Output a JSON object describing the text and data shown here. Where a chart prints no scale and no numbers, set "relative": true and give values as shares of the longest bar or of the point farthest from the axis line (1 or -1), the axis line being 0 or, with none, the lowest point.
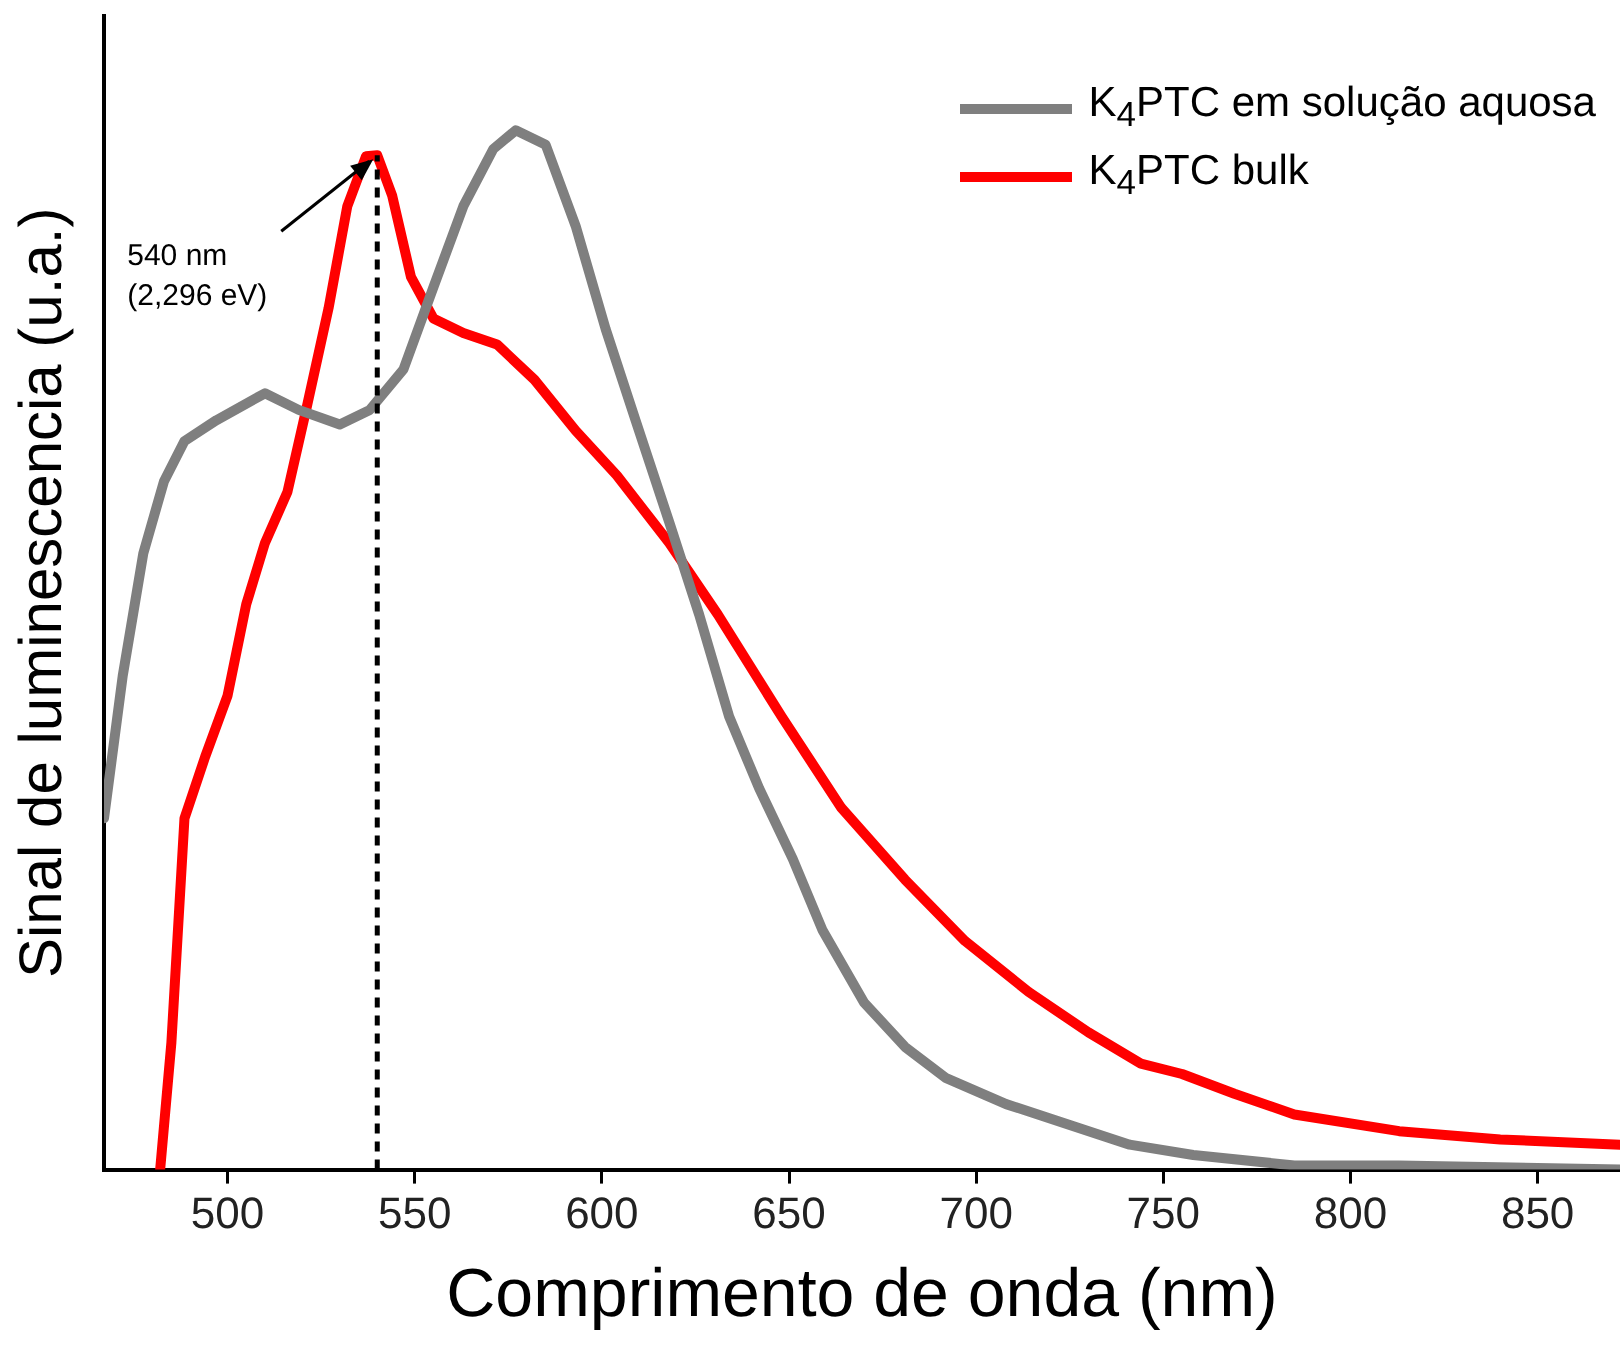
{
  "chart_data": {
    "type": "line",
    "xlabel": "Comprimento de onda (nm)",
    "ylabel": "Sinal de luminescencia (u.a.)",
    "relative": true,
    "xlim": [
      467,
      872
    ],
    "xticks": [
      500,
      550,
      600,
      650,
      700,
      750,
      800,
      850
    ],
    "grid": false,
    "legend": "top right",
    "marker": "none",
    "series": [
      {
        "name": "K$_{4}$PTC em solução aquosa",
        "color": "#7f7f7f",
        "x": [
          467,
          472,
          477.5,
          483,
          488.5,
          497,
          510,
          519,
          530,
          538,
          547,
          555,
          563,
          571,
          577,
          585,
          593,
          601,
          609,
          618,
          626,
          634,
          642,
          651,
          659,
          670,
          681,
          692,
          708,
          725,
          741,
          758,
          785,
          813,
          872
        ],
        "values": [
          0.338,
          0.475,
          0.593,
          0.662,
          0.701,
          0.721,
          0.747,
          0.731,
          0.717,
          0.731,
          0.77,
          0.849,
          0.927,
          0.982,
          1,
          0.986,
          0.908,
          0.809,
          0.721,
          0.623,
          0.534,
          0.436,
          0.367,
          0.299,
          0.23,
          0.161,
          0.118,
          0.088,
          0.063,
          0.043,
          0.024,
          0.014,
          0.004,
          0.004,
          0
        ]
      },
      {
        "name": "K$_{4}$PTC bulk",
        "color": "#ff0000",
        "x": [
          482,
          485,
          488.5,
          494,
          500,
          505,
          510,
          516,
          521,
          527,
          532,
          537,
          540,
          544,
          549,
          555,
          563,
          572,
          582,
          593,
          604,
          618,
          631,
          648,
          664,
          681,
          697,
          714,
          730,
          744,
          755,
          769,
          785,
          813,
          840,
          872
        ],
        "values": [
          0,
          0.122,
          0.338,
          0.397,
          0.456,
          0.544,
          0.603,
          0.652,
          0.731,
          0.829,
          0.927,
          0.975,
          0.976,
          0.937,
          0.859,
          0.819,
          0.805,
          0.794,
          0.76,
          0.711,
          0.668,
          0.603,
          0.534,
          0.436,
          0.348,
          0.279,
          0.22,
          0.171,
          0.132,
          0.102,
          0.092,
          0.073,
          0.053,
          0.037,
          0.029,
          0.024
        ]
      }
    ],
    "ref_lines": [
      {
        "axis": "x",
        "value": 540,
        "line_style": "dashed",
        "color": "#000000"
      }
    ],
    "annotations": [
      {
        "text": "540 nm\n(2,296 eV)",
        "x": 540,
        "y": 0.976
      }
    ]
  }
}
